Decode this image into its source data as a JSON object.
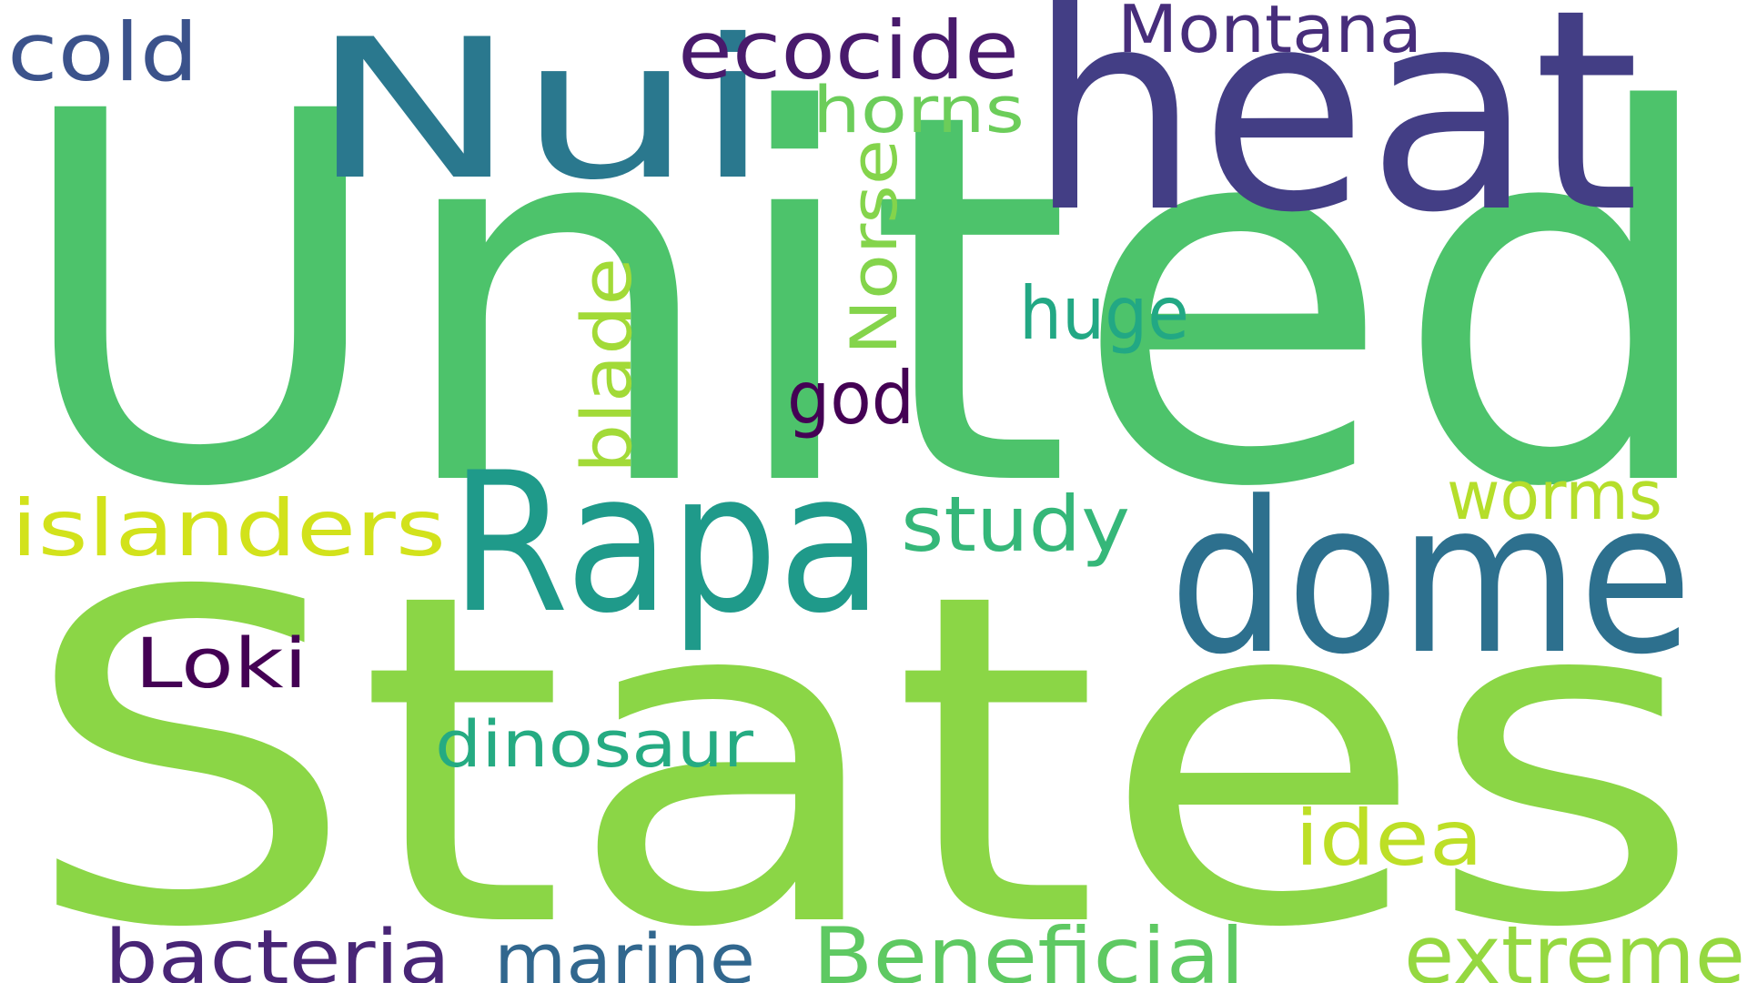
{
  "words": [
    {
      "text": "United",
      "color": "#4dc36b"
    },
    {
      "text": "States",
      "color": "#8bd646"
    },
    {
      "text": "heat",
      "color": "#433e85"
    },
    {
      "text": "Nui",
      "color": "#2a788e"
    },
    {
      "text": "Rapa",
      "color": "#1f9a8a"
    },
    {
      "text": "dome",
      "color": "#2d708e"
    },
    {
      "text": "ecocide",
      "color": "#481a6c"
    },
    {
      "text": "Montana",
      "color": "#472d7b"
    },
    {
      "text": "cold",
      "color": "#3b528b"
    },
    {
      "text": "horns",
      "color": "#6ccd5a"
    },
    {
      "text": "Norse",
      "color": "#84d44b"
    },
    {
      "text": "blade",
      "color": "#a2da37"
    },
    {
      "text": "huge",
      "color": "#22a884"
    },
    {
      "text": "god",
      "color": "#440154"
    },
    {
      "text": "worms",
      "color": "#b5de2b"
    },
    {
      "text": "islanders",
      "color": "#d2e21b"
    },
    {
      "text": "study",
      "color": "#35b779"
    },
    {
      "text": "Loki",
      "color": "#440154"
    },
    {
      "text": "dinosaur",
      "color": "#25ab82"
    },
    {
      "text": "idea",
      "color": "#bddf26"
    },
    {
      "text": "bacteria",
      "color": "#482576"
    },
    {
      "text": "marine",
      "color": "#31678e"
    },
    {
      "text": "Beneficial",
      "color": "#5ec962"
    },
    {
      "text": "extreme",
      "color": "#95d840"
    }
  ]
}
